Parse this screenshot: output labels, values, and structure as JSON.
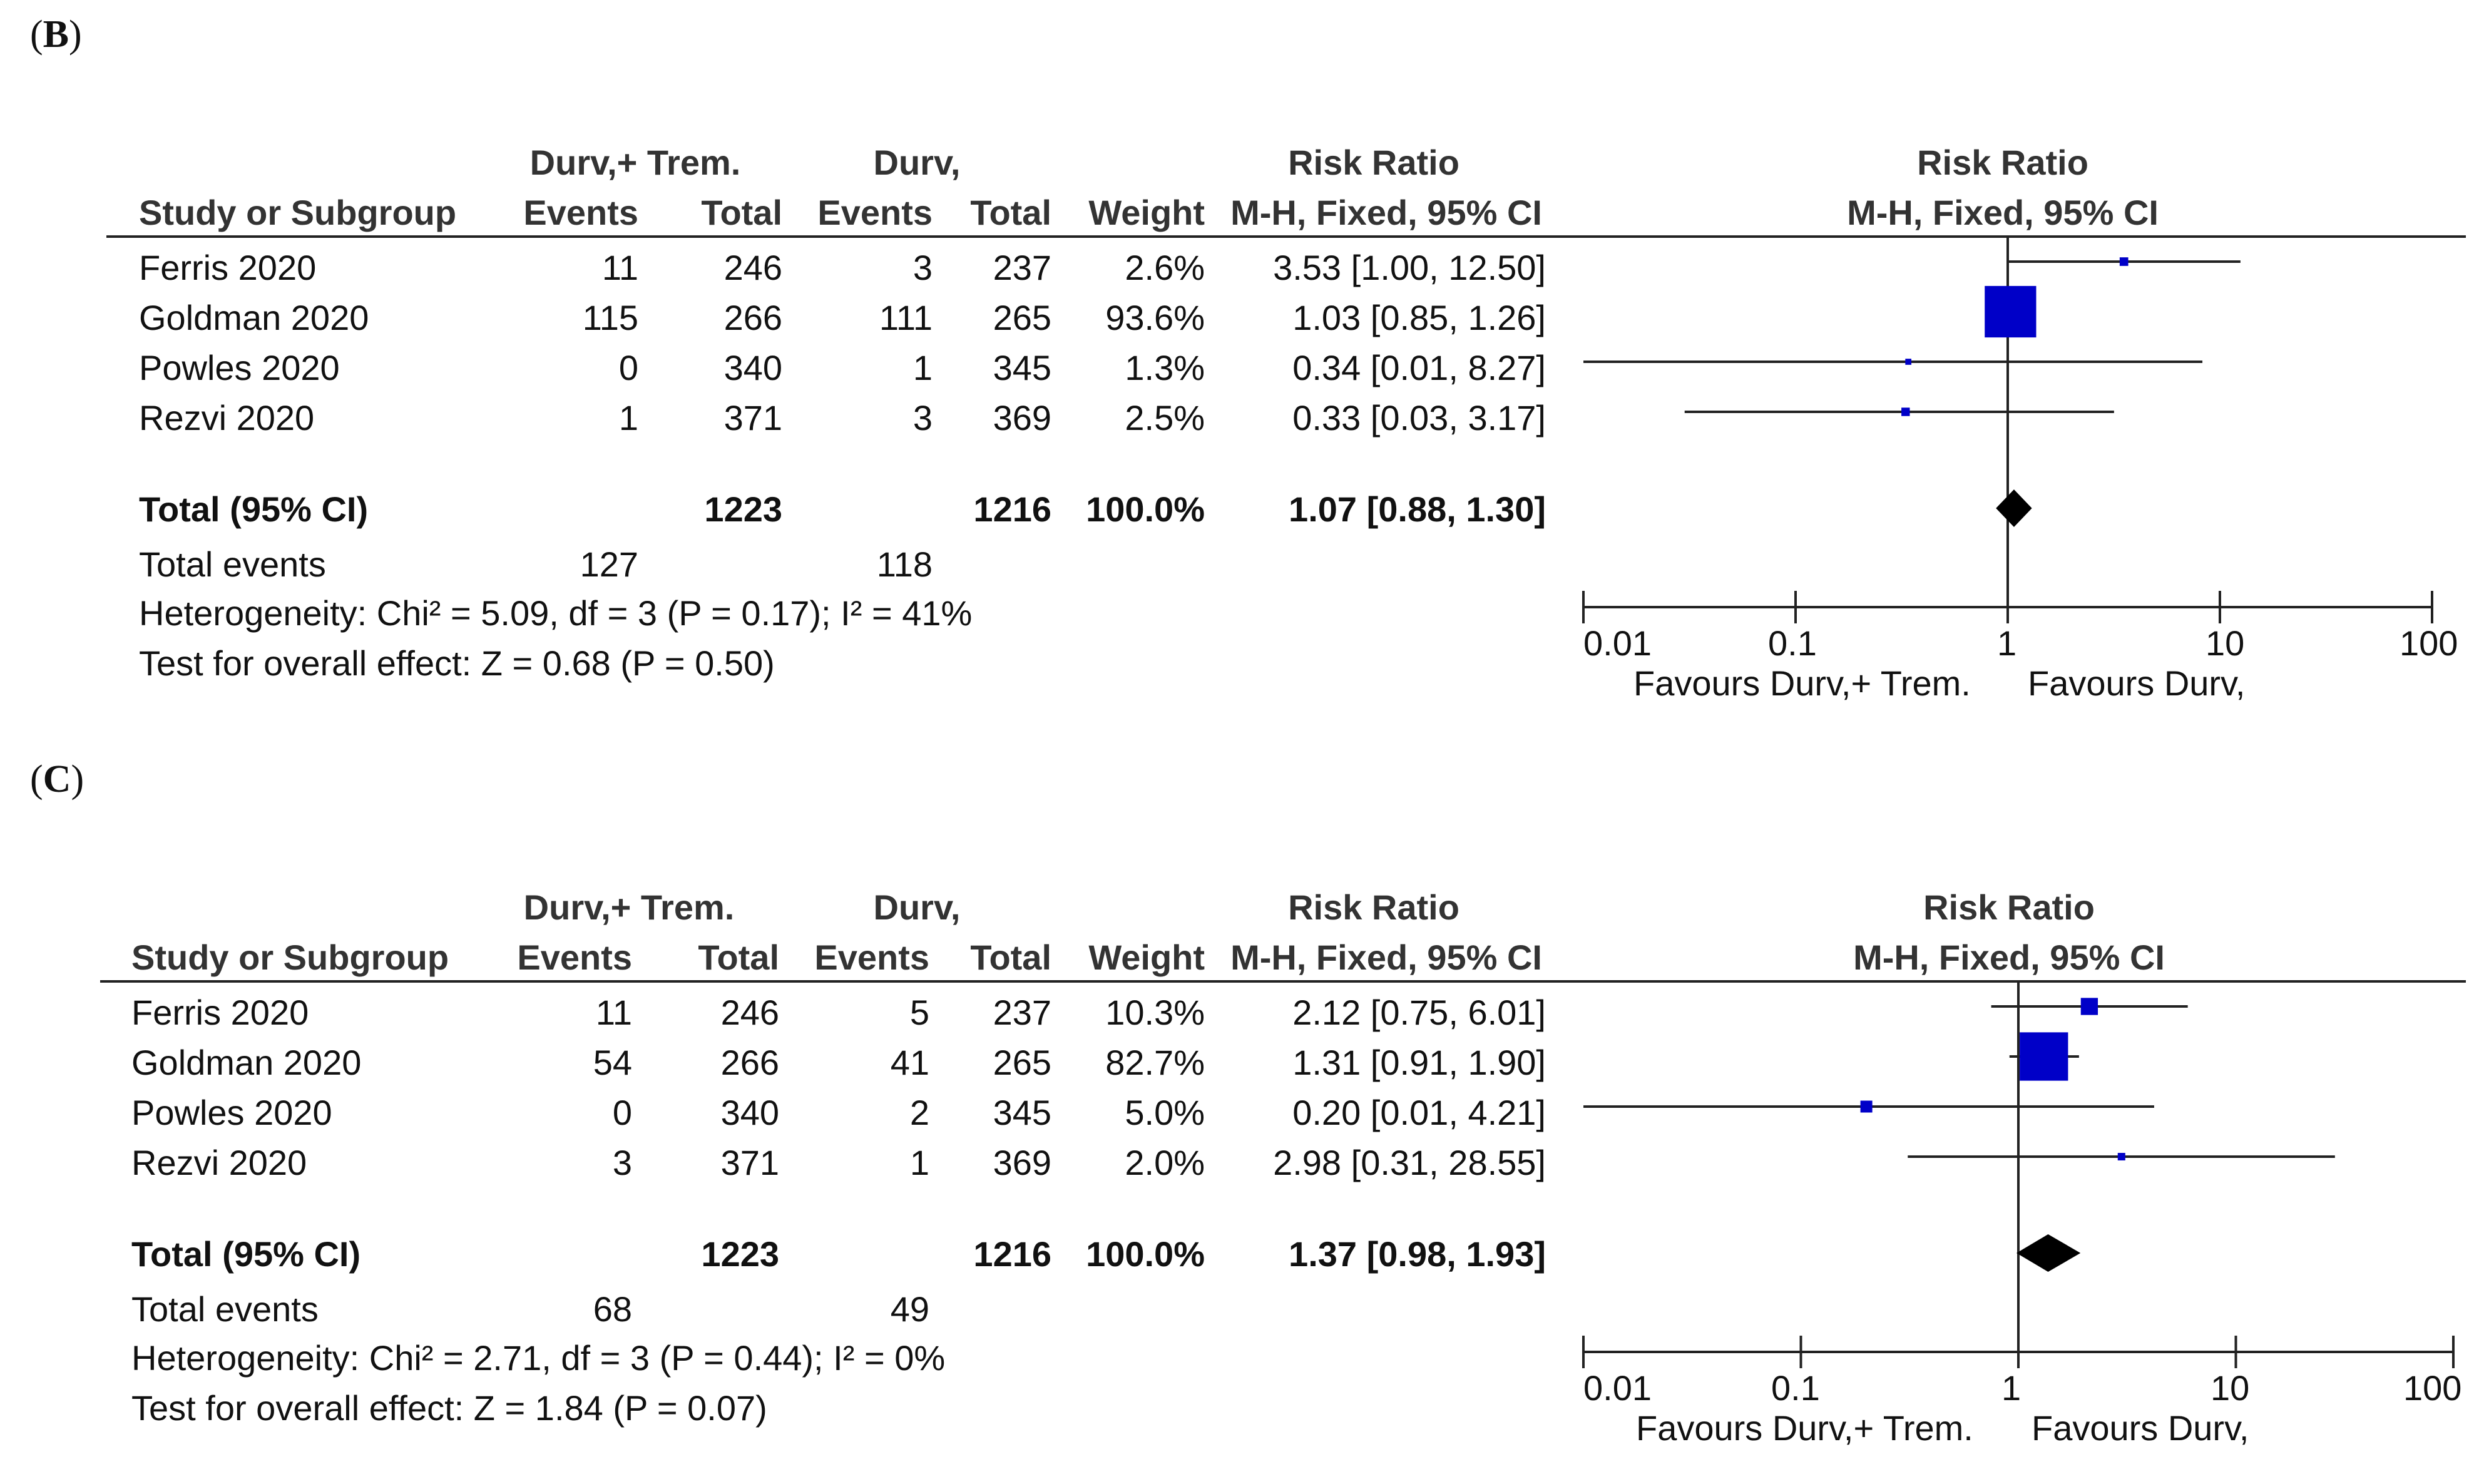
{
  "panels": [
    {
      "label_letter": "B",
      "group_headers": {
        "exp": "Durv,+ Trem.",
        "ctl": "Durv,",
        "rr": "Risk Ratio",
        "plot": "Risk Ratio"
      },
      "col_headers": {
        "study": "Study or Subgroup",
        "exp_events": "Events",
        "exp_total": "Total",
        "ctl_events": "Events",
        "ctl_total": "Total",
        "weight": "Weight",
        "rr_method": "M-H, Fixed, 95% CI",
        "plot_method": "M-H, Fixed, 95% CI"
      },
      "studies": [
        {
          "name": "Ferris 2020",
          "exp_events": "11",
          "exp_total": "246",
          "ctl_events": "3",
          "ctl_total": "237",
          "weight": "2.6%",
          "rr_text": "3.53 [1.00, 12.50]"
        },
        {
          "name": "Goldman 2020",
          "exp_events": "115",
          "exp_total": "266",
          "ctl_events": "111",
          "ctl_total": "265",
          "weight": "93.6%",
          "rr_text": "1.03 [0.85, 1.26]"
        },
        {
          "name": "Powles 2020",
          "exp_events": "0",
          "exp_total": "340",
          "ctl_events": "1",
          "ctl_total": "345",
          "weight": "1.3%",
          "rr_text": "0.34 [0.01, 8.27]"
        },
        {
          "name": "Rezvi 2020",
          "exp_events": "1",
          "exp_total": "371",
          "ctl_events": "3",
          "ctl_total": "369",
          "weight": "2.5%",
          "rr_text": "0.33 [0.03, 3.17]"
        }
      ],
      "total": {
        "label": "Total (95% CI)",
        "exp_total": "1223",
        "ctl_total": "1216",
        "weight": "100.0%",
        "rr_text": "1.07 [0.88, 1.30]"
      },
      "total_events": {
        "label": "Total events",
        "exp": "127",
        "ctl": "118"
      },
      "heterogeneity": "Heterogeneity: Chi² = 5.09, df = 3 (P = 0.17); I² = 41%",
      "overall_effect": "Test for overall effect: Z = 0.68 (P = 0.50)",
      "axis": {
        "ticks": [
          "0.01",
          "0.1",
          "1",
          "10",
          "100"
        ],
        "favours_left": "Favours Durv,+ Trem.",
        "favours_right": "Favours Durv,"
      }
    },
    {
      "label_letter": "C",
      "group_headers": {
        "exp": "Durv,+ Trem.",
        "ctl": "Durv,",
        "rr": "Risk Ratio",
        "plot": "Risk Ratio"
      },
      "col_headers": {
        "study": "Study or Subgroup",
        "exp_events": "Events",
        "exp_total": "Total",
        "ctl_events": "Events",
        "ctl_total": "Total",
        "weight": "Weight",
        "rr_method": "M-H, Fixed, 95% CI",
        "plot_method": "M-H, Fixed, 95% CI"
      },
      "studies": [
        {
          "name": "Ferris 2020",
          "exp_events": "11",
          "exp_total": "246",
          "ctl_events": "5",
          "ctl_total": "237",
          "weight": "10.3%",
          "rr_text": "2.12 [0.75, 6.01]"
        },
        {
          "name": "Goldman 2020",
          "exp_events": "54",
          "exp_total": "266",
          "ctl_events": "41",
          "ctl_total": "265",
          "weight": "82.7%",
          "rr_text": "1.31 [0.91, 1.90]"
        },
        {
          "name": "Powles 2020",
          "exp_events": "0",
          "exp_total": "340",
          "ctl_events": "2",
          "ctl_total": "345",
          "weight": "5.0%",
          "rr_text": "0.20 [0.01, 4.21]"
        },
        {
          "name": "Rezvi 2020",
          "exp_events": "3",
          "exp_total": "371",
          "ctl_events": "1",
          "ctl_total": "369",
          "weight": "2.0%",
          "rr_text": "2.98 [0.31, 28.55]"
        }
      ],
      "total": {
        "label": "Total (95% CI)",
        "exp_total": "1223",
        "ctl_total": "1216",
        "weight": "100.0%",
        "rr_text": "1.37 [0.98, 1.93]"
      },
      "total_events": {
        "label": "Total events",
        "exp": "68",
        "ctl": "49"
      },
      "heterogeneity": "Heterogeneity: Chi² = 2.71, df = 3 (P = 0.44); I² = 0%",
      "overall_effect": "Test for overall effect: Z = 1.84 (P = 0.07)",
      "axis": {
        "ticks": [
          "0.01",
          "0.1",
          "1",
          "10",
          "100"
        ],
        "favours_left": "Favours Durv,+ Trem.",
        "favours_right": "Favours Durv,"
      }
    }
  ],
  "chart_data": [
    {
      "type": "forest",
      "panel": "B",
      "scale": "log",
      "xlim": [
        0.01,
        100
      ],
      "null_value": 1,
      "studies": [
        {
          "name": "Ferris 2020",
          "rr": 3.53,
          "lower": 1.0,
          "upper": 12.5,
          "weight": 2.6
        },
        {
          "name": "Goldman 2020",
          "rr": 1.03,
          "lower": 0.85,
          "upper": 1.26,
          "weight": 93.6
        },
        {
          "name": "Powles 2020",
          "rr": 0.34,
          "lower": 0.01,
          "upper": 8.27,
          "weight": 1.3
        },
        {
          "name": "Rezvi 2020",
          "rr": 0.33,
          "lower": 0.03,
          "upper": 3.17,
          "weight": 2.5
        }
      ],
      "pooled": {
        "rr": 1.07,
        "lower": 0.88,
        "upper": 1.3
      },
      "colors": {
        "study": "#0000c8",
        "pooled": "#000000"
      }
    },
    {
      "type": "forest",
      "panel": "C",
      "scale": "log",
      "xlim": [
        0.01,
        100
      ],
      "null_value": 1,
      "studies": [
        {
          "name": "Ferris 2020",
          "rr": 2.12,
          "lower": 0.75,
          "upper": 6.01,
          "weight": 10.3
        },
        {
          "name": "Goldman 2020",
          "rr": 1.31,
          "lower": 0.91,
          "upper": 1.9,
          "weight": 82.7
        },
        {
          "name": "Powles 2020",
          "rr": 0.2,
          "lower": 0.01,
          "upper": 4.21,
          "weight": 5.0
        },
        {
          "name": "Rezvi 2020",
          "rr": 2.98,
          "lower": 0.31,
          "upper": 28.55,
          "weight": 2.0
        }
      ],
      "pooled": {
        "rr": 1.37,
        "lower": 0.98,
        "upper": 1.93
      },
      "colors": {
        "study": "#0000c8",
        "pooled": "#000000"
      }
    }
  ]
}
